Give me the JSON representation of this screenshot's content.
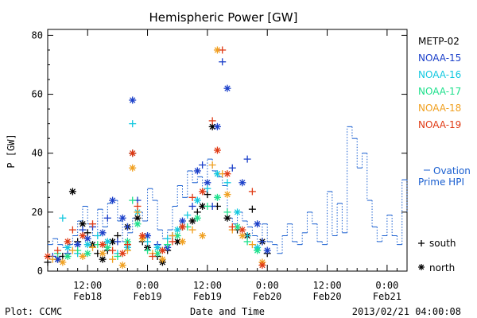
{
  "footer": {
    "left": "Plot: CCMC",
    "right": "2013/02/21 04:00:08"
  },
  "chart_data": {
    "type": "scatter",
    "title": "Hemispheric Power [GW]",
    "xlabel": "Date and Time",
    "ylabel": "P [GW]",
    "ylim": [
      0,
      82
    ],
    "xlim_hours": [
      0,
      72
    ],
    "y_ticks": [
      0,
      20,
      40,
      60,
      80
    ],
    "x_ticks": [
      {
        "time": "12:00",
        "date": "Feb18",
        "x": 8
      },
      {
        "time": "0:00",
        "date": "Feb19",
        "x": 20
      },
      {
        "time": "12:00",
        "date": "Feb19",
        "x": 32
      },
      {
        "time": "0:00",
        "date": "Feb20",
        "x": 44
      },
      {
        "time": "12:00",
        "date": "Feb20",
        "x": 56
      },
      {
        "time": "0:00",
        "date": "Feb21",
        "x": 68
      }
    ],
    "legend": {
      "placement": "right",
      "satellites": [
        {
          "name": "METP-02",
          "color": "#000000"
        },
        {
          "name": "NOAA-15",
          "color": "#1a3fc9"
        },
        {
          "name": "NOAA-16",
          "color": "#12c8e0"
        },
        {
          "name": "NOAA-17",
          "color": "#1ee08c"
        },
        {
          "name": "NOAA-18",
          "color": "#f0a020"
        },
        {
          "name": "NOAA-19",
          "color": "#e03a14"
        }
      ],
      "ovation_label_1": "Ovation",
      "ovation_label_2": "Prime HPI",
      "ovation_color": "#1a5fd0",
      "south_label": "south",
      "north_label": "north"
    },
    "ovation_step": [
      [
        0,
        9
      ],
      [
        1,
        11
      ],
      [
        2,
        9
      ],
      [
        3,
        8
      ],
      [
        4,
        9
      ],
      [
        5,
        12
      ],
      [
        6,
        17
      ],
      [
        7,
        22
      ],
      [
        8,
        16
      ],
      [
        9,
        12
      ],
      [
        10,
        21
      ],
      [
        11,
        15
      ],
      [
        12,
        23
      ],
      [
        13,
        24
      ],
      [
        14,
        17
      ],
      [
        15,
        10
      ],
      [
        16,
        13
      ],
      [
        17,
        18
      ],
      [
        18,
        20
      ],
      [
        19,
        17
      ],
      [
        20,
        28
      ],
      [
        21,
        24
      ],
      [
        22,
        14
      ],
      [
        23,
        11
      ],
      [
        24,
        14
      ],
      [
        25,
        22
      ],
      [
        26,
        29
      ],
      [
        27,
        25
      ],
      [
        28,
        34
      ],
      [
        29,
        30
      ],
      [
        30,
        32
      ],
      [
        31,
        27
      ],
      [
        32,
        38
      ],
      [
        33,
        34
      ],
      [
        34,
        32
      ],
      [
        35,
        29
      ],
      [
        36,
        18
      ],
      [
        37,
        16
      ],
      [
        38,
        20
      ],
      [
        39,
        17
      ],
      [
        40,
        15
      ],
      [
        41,
        12
      ],
      [
        42,
        10
      ],
      [
        43,
        16
      ],
      [
        44,
        10
      ],
      [
        45,
        9
      ],
      [
        46,
        6
      ],
      [
        47,
        12
      ],
      [
        48,
        16
      ],
      [
        49,
        10
      ],
      [
        50,
        9
      ],
      [
        51,
        13
      ],
      [
        52,
        20
      ],
      [
        53,
        16
      ],
      [
        54,
        10
      ],
      [
        55,
        9
      ],
      [
        56,
        27
      ],
      [
        57,
        12
      ],
      [
        58,
        23
      ],
      [
        59,
        13
      ],
      [
        60,
        49
      ],
      [
        61,
        45
      ],
      [
        62,
        35
      ],
      [
        63,
        40
      ],
      [
        64,
        24
      ],
      [
        65,
        15
      ],
      [
        66,
        10
      ],
      [
        67,
        12
      ],
      [
        68,
        19
      ],
      [
        69,
        12
      ],
      [
        70,
        9
      ],
      [
        71,
        31
      ],
      [
        72,
        20
      ]
    ],
    "series": [
      {
        "name": "METP-02",
        "points": [
          [
            0,
            3,
            "s"
          ],
          [
            2,
            4,
            "n"
          ],
          [
            3,
            5,
            "s"
          ],
          [
            5,
            27,
            "n"
          ],
          [
            6,
            10,
            "s"
          ],
          [
            7,
            16,
            "n"
          ],
          [
            8,
            13,
            "s"
          ],
          [
            9,
            9,
            "n"
          ],
          [
            10,
            6,
            "s"
          ],
          [
            11,
            4,
            "n"
          ],
          [
            12,
            7,
            "s"
          ],
          [
            13,
            10,
            "n"
          ],
          [
            14,
            12,
            "s"
          ],
          [
            16,
            15,
            "n"
          ],
          [
            17,
            40,
            "s"
          ],
          [
            18,
            18,
            "n"
          ],
          [
            19,
            10,
            "s"
          ],
          [
            20,
            8,
            "n"
          ],
          [
            22,
            5,
            "s"
          ],
          [
            23,
            3,
            "n"
          ],
          [
            24,
            7,
            "s"
          ],
          [
            26,
            10,
            "n"
          ],
          [
            27,
            15,
            "s"
          ],
          [
            29,
            17,
            "n"
          ],
          [
            30,
            20,
            "s"
          ],
          [
            31,
            22,
            "n"
          ],
          [
            32,
            26,
            "s"
          ],
          [
            33,
            49,
            "n"
          ],
          [
            34,
            22,
            "s"
          ],
          [
            36,
            18,
            "n"
          ],
          [
            38,
            14,
            "s"
          ],
          [
            40,
            12,
            "n"
          ],
          [
            41,
            21,
            "s"
          ],
          [
            43,
            10,
            "n"
          ],
          [
            44,
            6,
            "s"
          ]
        ]
      },
      {
        "name": "NOAA-15",
        "points": [
          [
            1,
            5,
            "s"
          ],
          [
            2,
            4,
            "n"
          ],
          [
            4,
            6,
            "s"
          ],
          [
            6,
            9,
            "n"
          ],
          [
            7,
            14,
            "s"
          ],
          [
            8,
            11,
            "n"
          ],
          [
            9,
            15,
            "s"
          ],
          [
            11,
            13,
            "n"
          ],
          [
            12,
            18,
            "s"
          ],
          [
            13,
            24,
            "n"
          ],
          [
            14,
            10,
            "s"
          ],
          [
            15,
            18,
            "n"
          ],
          [
            16,
            15,
            "s"
          ],
          [
            17,
            58,
            "n"
          ],
          [
            18,
            24,
            "s"
          ],
          [
            20,
            12,
            "n"
          ],
          [
            22,
            9,
            "s"
          ],
          [
            24,
            8,
            "n"
          ],
          [
            25,
            12,
            "s"
          ],
          [
            27,
            17,
            "n"
          ],
          [
            29,
            22,
            "s"
          ],
          [
            30,
            34,
            "n"
          ],
          [
            31,
            36,
            "s"
          ],
          [
            32,
            30,
            "n"
          ],
          [
            33,
            22,
            "s"
          ],
          [
            34,
            49,
            "n"
          ],
          [
            35,
            71,
            "s"
          ],
          [
            36,
            62,
            "n"
          ],
          [
            37,
            35,
            "s"
          ],
          [
            39,
            30,
            "n"
          ],
          [
            40,
            38,
            "s"
          ],
          [
            42,
            16,
            "n"
          ],
          [
            43,
            10,
            "s"
          ],
          [
            44,
            7,
            "n"
          ]
        ]
      },
      {
        "name": "NOAA-16",
        "points": [
          [
            3,
            18,
            "s"
          ],
          [
            4,
            8,
            "n"
          ],
          [
            6,
            6,
            "s"
          ],
          [
            8,
            9,
            "n"
          ],
          [
            10,
            12,
            "s"
          ],
          [
            12,
            10,
            "n"
          ],
          [
            14,
            6,
            "s"
          ],
          [
            16,
            8,
            "n"
          ],
          [
            17,
            50,
            "s"
          ],
          [
            18,
            20,
            "n"
          ],
          [
            20,
            10,
            "s"
          ],
          [
            22,
            8,
            "n"
          ],
          [
            24,
            11,
            "s"
          ],
          [
            26,
            14,
            "n"
          ],
          [
            28,
            19,
            "s"
          ],
          [
            30,
            24,
            "n"
          ],
          [
            32,
            28,
            "s"
          ],
          [
            34,
            33,
            "n"
          ],
          [
            36,
            30,
            "s"
          ],
          [
            38,
            20,
            "n"
          ],
          [
            40,
            12,
            "s"
          ],
          [
            42,
            8,
            "n"
          ]
        ]
      },
      {
        "name": "NOAA-17",
        "points": [
          [
            2,
            6,
            "s"
          ],
          [
            4,
            5,
            "n"
          ],
          [
            6,
            7,
            "s"
          ],
          [
            8,
            6,
            "n"
          ],
          [
            10,
            9,
            "s"
          ],
          [
            12,
            8,
            "n"
          ],
          [
            14,
            5,
            "s"
          ],
          [
            16,
            10,
            "n"
          ],
          [
            17,
            24,
            "s"
          ],
          [
            18,
            16,
            "n"
          ],
          [
            20,
            7,
            "s"
          ],
          [
            22,
            6,
            "n"
          ],
          [
            24,
            9,
            "s"
          ],
          [
            26,
            12,
            "n"
          ],
          [
            28,
            15,
            "s"
          ],
          [
            30,
            18,
            "n"
          ],
          [
            32,
            22,
            "s"
          ],
          [
            34,
            25,
            "n"
          ],
          [
            36,
            20,
            "s"
          ],
          [
            38,
            15,
            "n"
          ],
          [
            40,
            10,
            "s"
          ],
          [
            42,
            7,
            "n"
          ]
        ]
      },
      {
        "name": "NOAA-18",
        "points": [
          [
            1,
            4,
            "s"
          ],
          [
            3,
            3,
            "n"
          ],
          [
            5,
            7,
            "s"
          ],
          [
            7,
            5,
            "n"
          ],
          [
            9,
            8,
            "s"
          ],
          [
            11,
            6,
            "n"
          ],
          [
            13,
            4,
            "s"
          ],
          [
            15,
            2,
            "n"
          ],
          [
            16,
            7,
            "s"
          ],
          [
            17,
            35,
            "n"
          ],
          [
            18,
            20,
            "s"
          ],
          [
            19,
            11,
            "n"
          ],
          [
            21,
            6,
            "s"
          ],
          [
            23,
            4,
            "n"
          ],
          [
            25,
            12,
            "s"
          ],
          [
            27,
            10,
            "n"
          ],
          [
            29,
            14,
            "s"
          ],
          [
            31,
            12,
            "n"
          ],
          [
            33,
            36,
            "s"
          ],
          [
            34,
            75,
            "n"
          ],
          [
            35,
            33,
            "s"
          ],
          [
            36,
            26,
            "n"
          ],
          [
            37,
            14,
            "s"
          ],
          [
            39,
            12,
            "n"
          ],
          [
            41,
            9,
            "s"
          ],
          [
            43,
            3,
            "n"
          ]
        ]
      },
      {
        "name": "NOAA-19",
        "points": [
          [
            0,
            5,
            "n"
          ],
          [
            2,
            7,
            "s"
          ],
          [
            4,
            10,
            "n"
          ],
          [
            5,
            14,
            "s"
          ],
          [
            7,
            12,
            "n"
          ],
          [
            9,
            16,
            "s"
          ],
          [
            11,
            9,
            "n"
          ],
          [
            13,
            7,
            "s"
          ],
          [
            15,
            6,
            "n"
          ],
          [
            16,
            9,
            "s"
          ],
          [
            17,
            40,
            "n"
          ],
          [
            18,
            22,
            "s"
          ],
          [
            19,
            12,
            "n"
          ],
          [
            21,
            5,
            "s"
          ],
          [
            23,
            7,
            "n"
          ],
          [
            25,
            10,
            "s"
          ],
          [
            27,
            15,
            "n"
          ],
          [
            29,
            25,
            "s"
          ],
          [
            31,
            27,
            "n"
          ],
          [
            33,
            51,
            "s"
          ],
          [
            34,
            41,
            "n"
          ],
          [
            35,
            75,
            "s"
          ],
          [
            36,
            33,
            "n"
          ],
          [
            37,
            15,
            "s"
          ],
          [
            39,
            14,
            "n"
          ],
          [
            41,
            27,
            "s"
          ],
          [
            43,
            2,
            "n"
          ]
        ]
      }
    ]
  }
}
